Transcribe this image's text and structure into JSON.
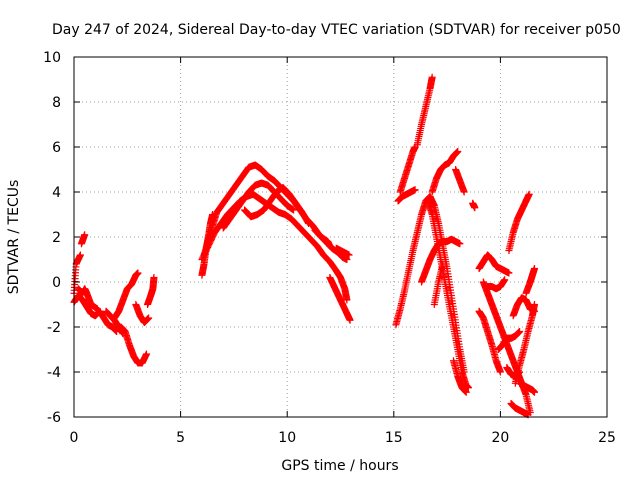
{
  "chart_data": {
    "type": "scatter",
    "title": "Day 247 of 2024, Sidereal Day-to-day VTEC variation (SDTVAR) for receiver p050",
    "xlabel": "GPS time / hours",
    "ylabel": "SDTVAR / TECUs",
    "xlim": [
      0,
      25
    ],
    "ylim": [
      -6,
      10
    ],
    "xticks": [
      0,
      5,
      10,
      15,
      20,
      25
    ],
    "yticks": [
      -6,
      -4,
      -2,
      0,
      2,
      4,
      6,
      8,
      10
    ],
    "xtick_labels": [
      "0",
      "5",
      "10",
      "15",
      "20",
      "25"
    ],
    "ytick_labels": [
      "-6",
      "-4",
      "-2",
      "0",
      "2",
      "4",
      "6",
      "8",
      "10"
    ],
    "grid": true,
    "legend": "none",
    "marker": "plus",
    "color": "#ff0000",
    "tracks": [
      [
        [
          0.0,
          -0.5
        ],
        [
          0.1,
          0.8
        ],
        [
          0.3,
          1.2
        ]
      ],
      [
        [
          0.35,
          1.7
        ],
        [
          0.5,
          2.1
        ]
      ],
      [
        [
          0.0,
          -0.9
        ],
        [
          0.2,
          -0.6
        ],
        [
          0.4,
          -0.8
        ],
        [
          0.6,
          -1.1
        ],
        [
          0.8,
          -1.4
        ],
        [
          1.0,
          -1.5
        ],
        [
          1.2,
          -1.3
        ],
        [
          1.4,
          -1.6
        ],
        [
          1.6,
          -1.9
        ],
        [
          1.8,
          -2.0
        ],
        [
          2.0,
          -2.2
        ]
      ],
      [
        [
          0.2,
          -0.3
        ],
        [
          0.4,
          -0.5
        ],
        [
          0.5,
          -0.3
        ],
        [
          0.6,
          -0.5
        ],
        [
          0.8,
          -1.0
        ],
        [
          1.1,
          -1.2
        ]
      ],
      [
        [
          1.5,
          -1.3
        ],
        [
          1.7,
          -1.5
        ],
        [
          1.9,
          -1.7
        ],
        [
          2.1,
          -2.0
        ],
        [
          2.3,
          -2.3
        ]
      ],
      [
        [
          1.9,
          -1.6
        ],
        [
          2.1,
          -1.3
        ],
        [
          2.3,
          -0.8
        ],
        [
          2.5,
          -0.3
        ],
        [
          2.7,
          -0.1
        ],
        [
          2.9,
          0.3
        ],
        [
          3.0,
          0.4
        ]
      ],
      [
        [
          2.2,
          -2.0
        ],
        [
          2.4,
          -2.2
        ],
        [
          2.6,
          -2.8
        ],
        [
          2.8,
          -3.3
        ],
        [
          3.0,
          -3.6
        ],
        [
          3.2,
          -3.6
        ],
        [
          3.4,
          -3.2
        ]
      ],
      [
        [
          2.9,
          -1.0
        ],
        [
          3.1,
          -1.5
        ],
        [
          3.3,
          -1.8
        ],
        [
          3.5,
          -1.6
        ]
      ],
      [
        [
          3.45,
          -1.0
        ],
        [
          3.6,
          -0.6
        ],
        [
          3.7,
          -0.3
        ],
        [
          3.75,
          0.2
        ]
      ],
      [
        [
          6.0,
          0.3
        ],
        [
          6.1,
          0.8
        ],
        [
          6.2,
          1.5
        ],
        [
          6.3,
          2.0
        ],
        [
          6.4,
          2.6
        ],
        [
          6.5,
          3.0
        ]
      ],
      [
        [
          6.1,
          1.2
        ],
        [
          6.3,
          1.8
        ],
        [
          6.5,
          2.5
        ],
        [
          6.7,
          3.1
        ],
        [
          7.0,
          3.5
        ],
        [
          7.3,
          3.9
        ],
        [
          7.6,
          4.3
        ],
        [
          7.9,
          4.7
        ],
        [
          8.2,
          5.1
        ],
        [
          8.5,
          5.2
        ],
        [
          8.8,
          5.0
        ],
        [
          9.1,
          4.7
        ],
        [
          9.4,
          4.5
        ],
        [
          9.7,
          4.2
        ],
        [
          10.0,
          3.9
        ],
        [
          10.3,
          3.6
        ],
        [
          10.6,
          3.2
        ],
        [
          10.9,
          2.8
        ],
        [
          11.2,
          2.5
        ],
        [
          11.5,
          2.1
        ],
        [
          11.8,
          1.8
        ],
        [
          12.1,
          1.5
        ],
        [
          12.4,
          1.3
        ],
        [
          12.6,
          1.1
        ],
        [
          12.8,
          1.0
        ]
      ],
      [
        [
          6.0,
          1.0
        ],
        [
          6.3,
          1.6
        ],
        [
          6.6,
          2.2
        ],
        [
          6.9,
          2.6
        ],
        [
          7.2,
          3.0
        ],
        [
          7.5,
          3.3
        ],
        [
          7.8,
          3.6
        ],
        [
          8.1,
          3.8
        ],
        [
          8.4,
          3.9
        ],
        [
          8.7,
          3.7
        ],
        [
          9.0,
          3.5
        ],
        [
          9.3,
          3.3
        ],
        [
          9.6,
          3.1
        ],
        [
          9.9,
          3.0
        ],
        [
          10.2,
          2.8
        ],
        [
          10.5,
          2.5
        ],
        [
          10.8,
          2.2
        ],
        [
          11.1,
          1.9
        ],
        [
          11.4,
          1.6
        ],
        [
          11.7,
          1.2
        ],
        [
          12.0,
          0.9
        ],
        [
          12.3,
          0.5
        ],
        [
          12.5,
          0.2
        ],
        [
          12.7,
          -0.3
        ],
        [
          12.8,
          -0.8
        ]
      ],
      [
        [
          7.0,
          2.4
        ],
        [
          7.3,
          2.8
        ],
        [
          7.6,
          3.2
        ],
        [
          7.9,
          3.6
        ],
        [
          8.2,
          4.0
        ],
        [
          8.5,
          4.3
        ],
        [
          8.8,
          4.4
        ],
        [
          9.1,
          4.3
        ],
        [
          9.4,
          4.0
        ],
        [
          9.7,
          3.7
        ],
        [
          10.0,
          3.4
        ],
        [
          10.3,
          3.2
        ]
      ],
      [
        [
          8.0,
          3.2
        ],
        [
          8.3,
          2.9
        ],
        [
          8.6,
          3.0
        ],
        [
          8.9,
          3.2
        ],
        [
          9.2,
          3.6
        ],
        [
          9.5,
          4.0
        ],
        [
          9.8,
          4.2
        ],
        [
          10.1,
          3.9
        ],
        [
          10.4,
          3.5
        ],
        [
          10.7,
          3.1
        ],
        [
          11.0,
          2.6
        ]
      ],
      [
        [
          11.3,
          2.3
        ],
        [
          11.6,
          2.0
        ],
        [
          11.9,
          1.8
        ],
        [
          12.0,
          1.6
        ]
      ],
      [
        [
          12.0,
          0.2
        ],
        [
          12.2,
          -0.2
        ],
        [
          12.4,
          -0.6
        ],
        [
          12.6,
          -1.0
        ],
        [
          12.8,
          -1.4
        ],
        [
          12.95,
          -1.7
        ]
      ],
      [
        [
          12.3,
          1.5
        ],
        [
          12.5,
          1.4
        ],
        [
          12.7,
          1.3
        ],
        [
          12.9,
          1.2
        ]
      ],
      [
        [
          15.1,
          -1.9
        ],
        [
          15.3,
          -1.2
        ],
        [
          15.5,
          -0.4
        ],
        [
          15.7,
          0.5
        ],
        [
          15.9,
          1.4
        ],
        [
          16.1,
          2.2
        ],
        [
          16.3,
          3.0
        ],
        [
          16.5,
          3.6
        ],
        [
          16.7,
          3.8
        ],
        [
          16.9,
          3.4
        ],
        [
          17.1,
          2.6
        ],
        [
          17.3,
          1.6
        ],
        [
          17.5,
          0.6
        ],
        [
          17.7,
          -0.6
        ],
        [
          17.9,
          -1.8
        ],
        [
          18.1,
          -3.0
        ],
        [
          18.3,
          -4.0
        ]
      ],
      [
        [
          15.2,
          3.6
        ],
        [
          15.4,
          3.8
        ],
        [
          15.6,
          3.9
        ],
        [
          15.8,
          4.0
        ],
        [
          16.0,
          4.1
        ]
      ],
      [
        [
          15.3,
          4.0
        ],
        [
          15.5,
          4.6
        ],
        [
          15.7,
          5.2
        ],
        [
          15.9,
          5.8
        ],
        [
          16.0,
          6.0
        ]
      ],
      [
        [
          16.1,
          6.1
        ],
        [
          16.3,
          7.0
        ],
        [
          16.5,
          7.8
        ],
        [
          16.7,
          8.6
        ],
        [
          16.8,
          9.1
        ]
      ],
      [
        [
          16.6,
          3.6
        ],
        [
          16.8,
          3.0
        ],
        [
          17.0,
          2.0
        ],
        [
          17.2,
          1.0
        ],
        [
          17.4,
          0.0
        ],
        [
          17.6,
          -1.0
        ],
        [
          17.8,
          -2.0
        ],
        [
          18.0,
          -3.0
        ],
        [
          18.2,
          -4.0
        ],
        [
          18.4,
          -4.6
        ],
        [
          18.5,
          -4.7
        ]
      ],
      [
        [
          16.8,
          4.0
        ],
        [
          17.0,
          4.6
        ],
        [
          17.2,
          5.0
        ],
        [
          17.4,
          5.2
        ],
        [
          17.6,
          5.3
        ],
        [
          17.8,
          5.6
        ],
        [
          18.0,
          5.8
        ]
      ],
      [
        [
          17.9,
          5.0
        ],
        [
          18.1,
          4.5
        ],
        [
          18.3,
          4.0
        ]
      ],
      [
        [
          16.3,
          0.0
        ],
        [
          16.5,
          0.5
        ],
        [
          16.7,
          1.0
        ],
        [
          16.9,
          1.4
        ],
        [
          17.1,
          1.7
        ],
        [
          17.3,
          1.8
        ],
        [
          17.5,
          1.8
        ],
        [
          17.7,
          1.9
        ],
        [
          17.9,
          1.8
        ],
        [
          18.1,
          1.7
        ]
      ],
      [
        [
          16.9,
          -1.0
        ],
        [
          17.1,
          0.0
        ],
        [
          17.3,
          0.8
        ]
      ],
      [
        [
          17.8,
          -3.5
        ],
        [
          18.0,
          -4.2
        ],
        [
          18.2,
          -4.7
        ],
        [
          18.4,
          -4.9
        ]
      ],
      [
        [
          18.7,
          3.5
        ],
        [
          18.8,
          3.3
        ]
      ],
      [
        [
          19.0,
          0.6
        ],
        [
          19.2,
          0.9
        ],
        [
          19.4,
          1.2
        ],
        [
          19.6,
          1.0
        ],
        [
          19.8,
          0.7
        ],
        [
          20.0,
          0.6
        ],
        [
          20.2,
          0.5
        ],
        [
          20.4,
          0.4
        ]
      ],
      [
        [
          19.2,
          0.0
        ],
        [
          19.4,
          -0.5
        ],
        [
          19.6,
          -1.0
        ],
        [
          19.8,
          -1.5
        ],
        [
          20.0,
          -2.0
        ],
        [
          20.2,
          -2.5
        ],
        [
          20.4,
          -3.0
        ],
        [
          20.6,
          -3.5
        ],
        [
          20.8,
          -4.0
        ],
        [
          21.0,
          -4.5
        ],
        [
          21.2,
          -5.0
        ],
        [
          21.4,
          -5.8
        ]
      ],
      [
        [
          19.0,
          -1.3
        ],
        [
          19.2,
          -1.6
        ],
        [
          19.4,
          -2.2
        ],
        [
          19.6,
          -2.8
        ],
        [
          19.8,
          -3.5
        ],
        [
          20.0,
          -4.0
        ]
      ],
      [
        [
          19.4,
          -0.2
        ],
        [
          19.6,
          -0.2
        ],
        [
          19.8,
          -0.3
        ],
        [
          20.0,
          -0.2
        ],
        [
          20.2,
          0.1
        ]
      ],
      [
        [
          19.9,
          -3.0
        ],
        [
          20.1,
          -2.8
        ],
        [
          20.3,
          -2.5
        ],
        [
          20.5,
          -2.5
        ],
        [
          20.7,
          -2.4
        ],
        [
          20.9,
          -2.2
        ]
      ],
      [
        [
          20.3,
          -3.8
        ],
        [
          20.5,
          -4.1
        ],
        [
          20.7,
          -4.2
        ],
        [
          20.9,
          -4.0
        ]
      ],
      [
        [
          20.4,
          1.4
        ],
        [
          20.6,
          2.2
        ],
        [
          20.8,
          2.8
        ],
        [
          21.0,
          3.2
        ],
        [
          21.2,
          3.6
        ],
        [
          21.35,
          3.9
        ]
      ],
      [
        [
          20.6,
          -1.5
        ],
        [
          20.8,
          -1.0
        ],
        [
          21.0,
          -0.7
        ],
        [
          21.2,
          -0.8
        ],
        [
          21.4,
          -1.2
        ],
        [
          21.6,
          -1.3
        ]
      ],
      [
        [
          20.9,
          -4.5
        ],
        [
          21.1,
          -4.6
        ],
        [
          21.3,
          -4.7
        ],
        [
          21.5,
          -4.8
        ],
        [
          21.6,
          -4.9
        ]
      ],
      [
        [
          20.5,
          -5.4
        ],
        [
          20.7,
          -5.6
        ],
        [
          20.9,
          -5.7
        ],
        [
          21.1,
          -5.8
        ],
        [
          21.3,
          -5.9
        ]
      ],
      [
        [
          20.7,
          -4.5
        ],
        [
          20.9,
          -3.7
        ],
        [
          21.1,
          -3.0
        ],
        [
          21.3,
          -2.2
        ],
        [
          21.5,
          -1.5
        ],
        [
          21.6,
          -1.0
        ]
      ],
      [
        [
          21.2,
          -0.5
        ],
        [
          21.4,
          0.0
        ],
        [
          21.5,
          0.3
        ],
        [
          21.6,
          0.6
        ]
      ]
    ]
  }
}
